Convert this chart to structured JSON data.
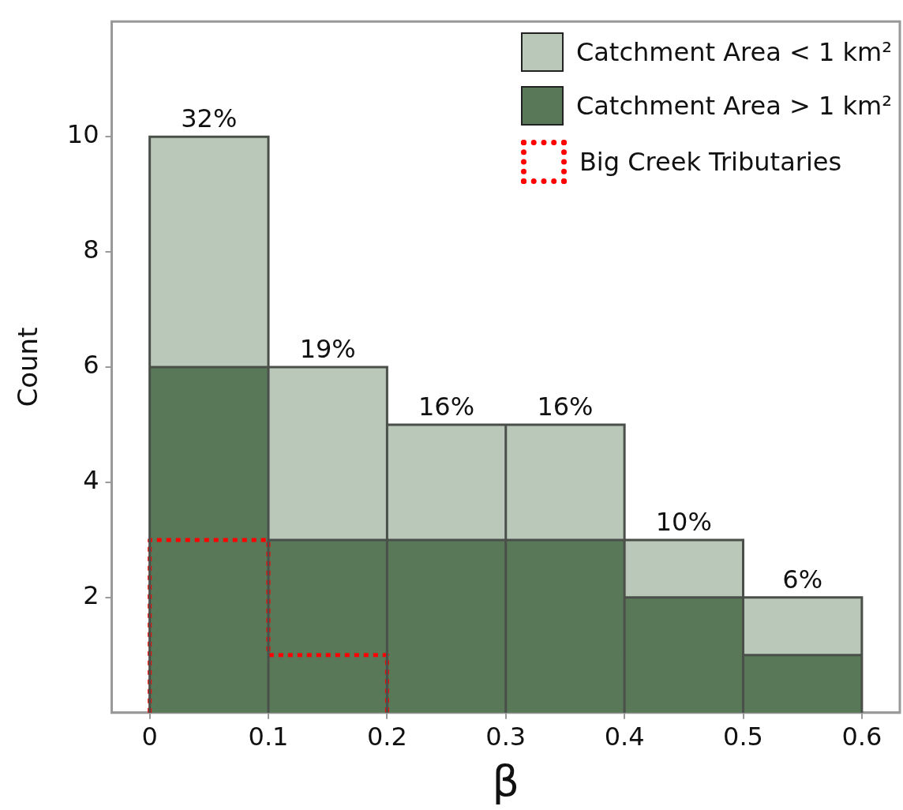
{
  "chart_data": {
    "type": "bar",
    "xlabel": "β",
    "ylabel": "Count",
    "x": [
      0.05,
      0.15,
      0.25,
      0.35,
      0.45,
      0.55
    ],
    "stacked": true,
    "series": [
      {
        "name": "Catchment Area > 1 km²",
        "color": "#587858",
        "values": [
          6,
          3,
          3,
          3,
          2,
          1
        ]
      },
      {
        "name": "Catchment Area < 1 km²",
        "color": "#bac8b9",
        "values": [
          4,
          3,
          2,
          2,
          1,
          1
        ]
      },
      {
        "name": "Big Creek Tributaries",
        "type": "step",
        "color": "#ff0000",
        "x": [
          0,
          0,
          0.1,
          0.2
        ],
        "values": [
          0,
          3,
          1,
          0
        ],
        "line_style": "dotted"
      }
    ],
    "annotations": [
      {
        "text": "32%",
        "x": 0.05,
        "y": 10
      },
      {
        "text": "19%",
        "x": 0.15,
        "y": 6
      },
      {
        "text": "16%",
        "x": 0.25,
        "y": 5
      },
      {
        "text": "16%",
        "x": 0.35,
        "y": 5
      },
      {
        "text": "10%",
        "x": 0.45,
        "y": 3
      },
      {
        "text": "6%",
        "x": 0.55,
        "y": 2
      }
    ],
    "xlim": [
      -0.032,
      0.632
    ],
    "xticks": [
      0,
      0.1,
      0.2,
      0.3,
      0.4,
      0.5,
      0.6
    ],
    "ylim": [
      0,
      12
    ],
    "yticks": [
      2,
      4,
      6,
      8,
      10
    ],
    "legend": "top right"
  }
}
